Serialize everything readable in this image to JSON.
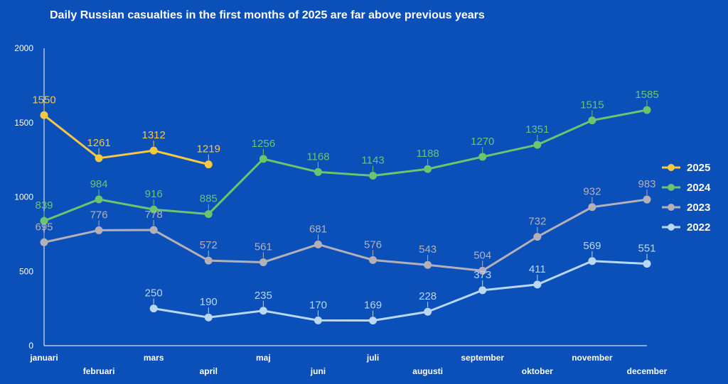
{
  "chart_data": {
    "type": "line",
    "title": "Daily Russian casualties in the first months of 2025 are far above previous years",
    "xlabel": "",
    "ylabel": "",
    "categories": [
      "januari",
      "februari",
      "mars",
      "april",
      "maj",
      "juni",
      "juli",
      "augusti",
      "september",
      "oktober",
      "november",
      "december"
    ],
    "yticks": [
      "0",
      "500",
      "1000",
      "1500",
      "2000"
    ],
    "ylim": [
      0,
      2000
    ],
    "grid": false,
    "legend_position": "right",
    "series": [
      {
        "name": "2025",
        "color": "#f7c842",
        "values": [
          1550,
          1261,
          1312,
          1219,
          null,
          null,
          null,
          null,
          null,
          null,
          null,
          null
        ],
        "labels": [
          "1550",
          "1261",
          "1312",
          "1219",
          "",
          "",
          "",
          "",
          "",
          "",
          "",
          ""
        ]
      },
      {
        "name": "2024",
        "color": "#6cc46f",
        "values": [
          839,
          984,
          916,
          885,
          1256,
          1168,
          1143,
          1188,
          1270,
          1351,
          1515,
          1585
        ],
        "labels": [
          "839",
          "984",
          "916",
          "885",
          "1256",
          "1168",
          "1143",
          "1188",
          "1270",
          "1351",
          "1515",
          "1585"
        ]
      },
      {
        "name": "2023",
        "color": "#b4b0b8",
        "values": [
          695,
          776,
          778,
          572,
          561,
          681,
          576,
          543,
          504,
          732,
          932,
          983
        ],
        "labels": [
          "695",
          "776",
          "778",
          "572",
          "561",
          "681",
          "576",
          "543",
          "504",
          "732",
          "932",
          "983"
        ]
      },
      {
        "name": "2022",
        "color": "#b8d8f5",
        "values": [
          null,
          null,
          250,
          190,
          235,
          170,
          169,
          228,
          373,
          411,
          569,
          551
        ],
        "labels": [
          "",
          "",
          "250",
          "190",
          "235",
          "170",
          "169",
          "228",
          "373",
          "411",
          "569",
          "551"
        ]
      }
    ]
  }
}
